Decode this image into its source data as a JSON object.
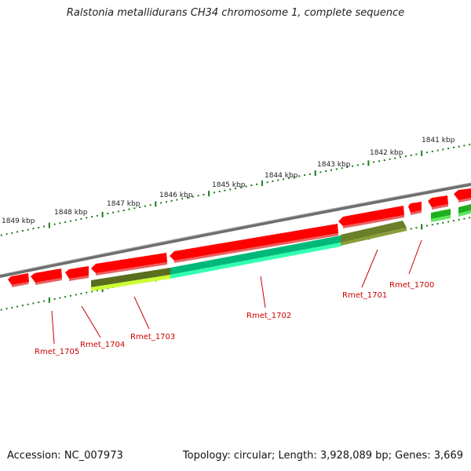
{
  "title": "Ralstonia metallidurans CH34 chromosome 1, complete sequence",
  "accession": "Accession: NC_007973",
  "topology": "Topology: circular; Length: 3,928,089 bp; Genes: 3,669",
  "colors": {
    "forward_gene": "#ff0000",
    "reverse_gene_green": "#22cc22",
    "reverse_gene_olive": "#6b8e23",
    "reverse_gene_cyan": "#00ff99",
    "reverse_gene_lime": "#ccff33",
    "backbone": "#7f7f7f",
    "ticks": "#1a7a1a",
    "label": "#cc0000"
  },
  "kbp_labels": [
    "1841 kbp",
    "1842 kbp",
    "1843 kbp",
    "1844 kbp",
    "1845 kbp",
    "1846 kbp",
    "1847 kbp",
    "1848 kbp",
    "1849 kbp"
  ],
  "gene_labels": [
    "Rmet_1700",
    "Rmet_1701",
    "Rmet_1702",
    "Rmet_1703",
    "Rmet_1704",
    "Rmet_1705"
  ]
}
